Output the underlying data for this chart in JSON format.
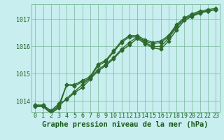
{
  "title": "Graphe pression niveau de la mer (hPa)",
  "background_color": "#c8eef0",
  "grid_color": "#7ab898",
  "line_color": "#2d6a2d",
  "spine_color": "#7ab898",
  "x_min": -0.5,
  "x_max": 23.5,
  "y_min": 1013.6,
  "y_max": 1017.55,
  "y_ticks": [
    1014,
    1015,
    1016,
    1017
  ],
  "x_ticks": [
    0,
    1,
    2,
    3,
    4,
    5,
    6,
    7,
    8,
    9,
    10,
    11,
    12,
    13,
    14,
    15,
    16,
    17,
    18,
    19,
    20,
    21,
    22,
    23
  ],
  "series": [
    [
      1013.85,
      1013.85,
      1013.6,
      1013.85,
      1014.6,
      1014.6,
      1014.75,
      1014.9,
      1015.35,
      1015.5,
      1015.85,
      1016.2,
      1016.4,
      1016.4,
      1016.25,
      1016.15,
      1016.2,
      1016.4,
      1016.8,
      1017.05,
      1017.2,
      1017.3,
      1017.35,
      1017.4
    ],
    [
      1013.8,
      1013.8,
      1013.55,
      1013.8,
      1014.1,
      1014.35,
      1014.6,
      1014.85,
      1015.15,
      1015.35,
      1015.6,
      1015.9,
      1016.15,
      1016.35,
      1016.15,
      1016.0,
      1016.0,
      1016.3,
      1016.7,
      1017.0,
      1017.15,
      1017.25,
      1017.3,
      1017.35
    ],
    [
      1013.8,
      1013.8,
      1013.55,
      1013.75,
      1014.6,
      1014.55,
      1014.7,
      1014.85,
      1015.3,
      1015.45,
      1015.8,
      1016.15,
      1016.35,
      1016.35,
      1016.2,
      1016.1,
      1016.15,
      1016.35,
      1016.75,
      1017.0,
      1017.15,
      1017.25,
      1017.3,
      1017.35
    ],
    [
      1013.85,
      1013.85,
      1013.65,
      1013.9,
      1014.05,
      1014.3,
      1014.5,
      1014.8,
      1015.1,
      1015.3,
      1015.55,
      1015.85,
      1016.05,
      1016.3,
      1016.1,
      1015.95,
      1015.9,
      1016.2,
      1016.6,
      1016.95,
      1017.1,
      1017.22,
      1017.3,
      1017.35
    ]
  ],
  "marker": "D",
  "markersize": 2.5,
  "linewidth": 1.0,
  "title_fontsize": 7.5,
  "tick_fontsize": 6,
  "label_color": "#1a5c1a"
}
